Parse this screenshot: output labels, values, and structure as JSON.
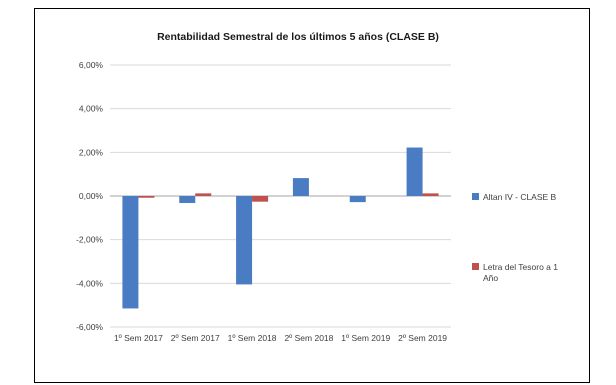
{
  "chart_data": {
    "type": "bar",
    "title": "Rentabilidad Semestral de los últimos 5 años (CLASE B)",
    "xlabel": "",
    "ylabel": "",
    "categories": [
      "1º Sem 2017",
      "2º Sem 2017",
      "1º Sem 2018",
      "2º Sem 2018",
      "1º Sem 2019",
      "2º Sem 2019"
    ],
    "series": [
      {
        "name": "Altan IV - CLASE B",
        "color": "#4a7cc4",
        "values": [
          -5.15,
          -0.32,
          -4.05,
          0.82,
          -0.28,
          2.22
        ]
      },
      {
        "name": "Letra del Tesoro a 1 Año",
        "color": "#c0504d",
        "values": [
          -0.08,
          0.12,
          -0.26,
          0.0,
          0.0,
          0.12
        ]
      }
    ],
    "ylim": [
      -6,
      6
    ],
    "yticks": [
      6,
      4,
      2,
      0,
      -2,
      -4,
      -6
    ],
    "ytick_labels": [
      "6,00%",
      "4,00%",
      "2,00%",
      "0,00%",
      "-2,00%",
      "-4,00%",
      "-6,00%"
    ],
    "grid": true,
    "legend_position": "right"
  }
}
